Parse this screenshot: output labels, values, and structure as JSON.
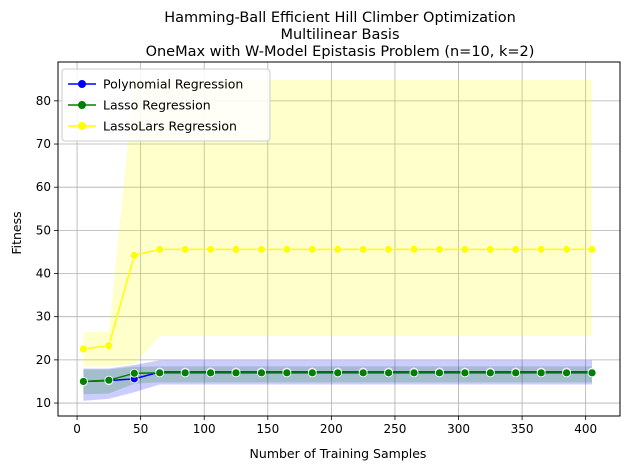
{
  "chart_data": {
    "type": "line",
    "title_lines": [
      "Hamming-Ball Efficient Hill Climber Optimization",
      "Multilinear Basis",
      "OneMax with W-Model Epistasis Problem (n=10, k=2)"
    ],
    "xlabel": "Number of Training Samples",
    "ylabel": "Fitness",
    "xlim": [
      -15,
      427
    ],
    "ylim": [
      7,
      89
    ],
    "xticks": [
      0,
      50,
      100,
      150,
      200,
      250,
      300,
      350,
      400
    ],
    "yticks": [
      10,
      20,
      30,
      40,
      50,
      60,
      70,
      80
    ],
    "grid": true,
    "legend_position": "upper left",
    "x": [
      5,
      25,
      45,
      65,
      85,
      105,
      125,
      145,
      165,
      185,
      205,
      225,
      245,
      265,
      285,
      305,
      325,
      345,
      365,
      385,
      405
    ],
    "series": [
      {
        "name": "Polynomial Regression",
        "color": "#0000ff",
        "values": [
          15.0,
          15.2,
          15.6,
          17.2,
          17.2,
          17.2,
          17.2,
          17.2,
          17.2,
          17.2,
          17.2,
          17.2,
          17.2,
          17.2,
          17.2,
          17.2,
          17.2,
          17.2,
          17.2,
          17.2,
          17.2
        ],
        "ci_low": [
          10.5,
          11.0,
          12.5,
          14.3,
          14.3,
          14.3,
          14.3,
          14.3,
          14.3,
          14.3,
          14.3,
          14.3,
          14.3,
          14.3,
          14.3,
          14.3,
          14.3,
          14.3,
          14.3,
          14.3,
          14.3
        ],
        "ci_high": [
          18.0,
          18.0,
          18.8,
          19.9,
          19.9,
          19.9,
          19.9,
          19.9,
          19.9,
          19.9,
          19.9,
          19.9,
          19.9,
          19.9,
          19.9,
          19.9,
          19.9,
          19.9,
          19.9,
          19.9,
          19.9
        ]
      },
      {
        "name": "Lasso Regression",
        "color": "#008000",
        "values": [
          15.0,
          15.3,
          16.9,
          17.0,
          17.0,
          17.0,
          17.0,
          17.0,
          17.0,
          17.0,
          17.0,
          17.0,
          17.0,
          17.0,
          17.0,
          17.0,
          17.0,
          17.0,
          17.0,
          17.0,
          17.0
        ],
        "ci_low": [
          12.0,
          12.2,
          14.5,
          14.8,
          14.8,
          14.8,
          14.8,
          14.8,
          14.8,
          14.8,
          14.8,
          14.8,
          14.8,
          14.8,
          14.8,
          14.8,
          14.8,
          14.8,
          14.8,
          14.8,
          14.8
        ],
        "ci_high": [
          17.8,
          17.8,
          18.4,
          18.5,
          18.5,
          18.5,
          18.5,
          18.5,
          18.5,
          18.5,
          18.5,
          18.5,
          18.5,
          18.5,
          18.5,
          18.5,
          18.5,
          18.5,
          18.5,
          18.5,
          18.5
        ]
      },
      {
        "name": "LassoLars Regression",
        "color": "#ffff00",
        "values": [
          22.5,
          23.3,
          44.2,
          45.6,
          45.6,
          45.6,
          45.6,
          45.6,
          45.6,
          45.6,
          45.6,
          45.6,
          45.6,
          45.6,
          45.6,
          45.6,
          45.6,
          45.6,
          45.6,
          45.6,
          45.6
        ],
        "ci_low": [
          18.5,
          18.5,
          19.0,
          25.5,
          25.5,
          25.5,
          25.5,
          25.5,
          25.5,
          25.5,
          25.5,
          25.5,
          25.5,
          25.5,
          25.5,
          25.5,
          25.5,
          25.5,
          25.5,
          25.5,
          25.5
        ],
        "ci_high": [
          26.5,
          26.5,
          84.8,
          84.8,
          84.8,
          84.8,
          84.8,
          84.8,
          84.8,
          84.8,
          84.8,
          84.8,
          84.8,
          84.8,
          84.8,
          84.8,
          84.8,
          84.8,
          84.8,
          84.8,
          84.8
        ]
      }
    ],
    "colors": {
      "band_polynomial": "#0000ff",
      "band_lasso": "#008000",
      "band_lassolars": "#ffff00",
      "grid": "#b0b0b0",
      "marker_edge": "#ffffff"
    }
  }
}
